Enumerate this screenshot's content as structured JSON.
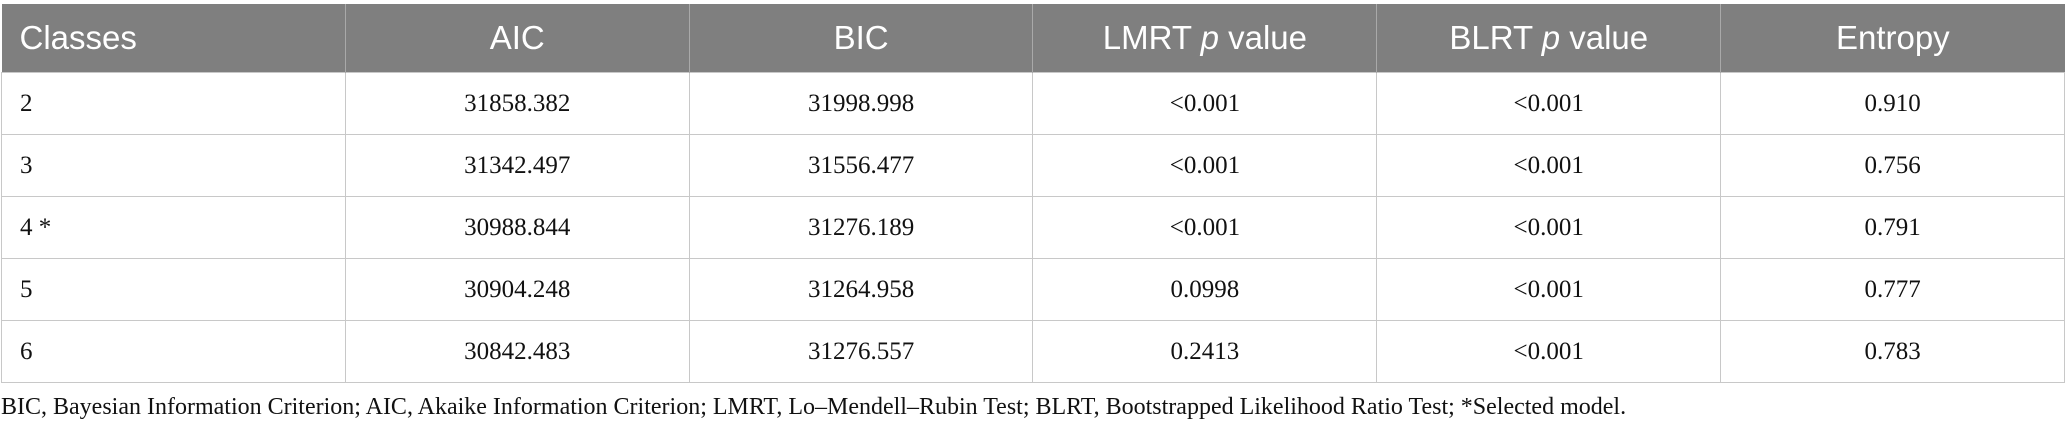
{
  "table": {
    "header": [
      [
        "Classes"
      ],
      [
        "AIC"
      ],
      [
        "BIC"
      ],
      [
        "LMRT ",
        "p",
        " value"
      ],
      [
        "BLRT ",
        "p",
        " value"
      ],
      [
        "Entropy"
      ]
    ],
    "rows": [
      [
        "2",
        "31858.382",
        "31998.998",
        "<0.001",
        "<0.001",
        "0.910"
      ],
      [
        "3",
        "31342.497",
        "31556.477",
        "<0.001",
        "<0.001",
        "0.756"
      ],
      [
        "4 *",
        "30988.844",
        "31276.189",
        "<0.001",
        "<0.001",
        "0.791"
      ],
      [
        "5",
        "30904.248",
        "31264.958",
        "0.0998",
        "<0.001",
        "0.777"
      ],
      [
        "6",
        "30842.483",
        "31276.557",
        "0.2413",
        "<0.001",
        "0.783"
      ]
    ]
  },
  "footnote": "BIC, Bayesian Information Criterion; AIC, Akaike Information Criterion; LMRT, Lo–Mendell–Rubin Test; BLRT, Bootstrapped Likelihood Ratio Test; *Selected model."
}
